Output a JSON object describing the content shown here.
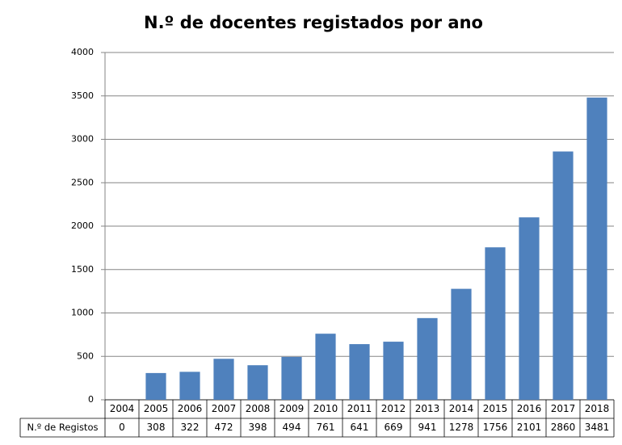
{
  "chart_data": {
    "type": "bar",
    "title": "N.º de docentes registados por ano",
    "categories": [
      "2004",
      "2005",
      "2006",
      "2007",
      "2008",
      "2009",
      "2010",
      "2011",
      "2012",
      "2013",
      "2014",
      "2015",
      "2016",
      "2017",
      "2018"
    ],
    "series": [
      {
        "name": "N.º de Registos",
        "color": "#4f81bd",
        "values": [
          0,
          308,
          322,
          472,
          398,
          494,
          761,
          641,
          669,
          941,
          1278,
          1756,
          2101,
          2860,
          3481
        ]
      }
    ],
    "ylim": [
      0,
      4000
    ],
    "yticks": [
      0,
      500,
      1000,
      1500,
      2000,
      2500,
      3000,
      3500,
      4000
    ],
    "grid": true,
    "data_table": true
  }
}
